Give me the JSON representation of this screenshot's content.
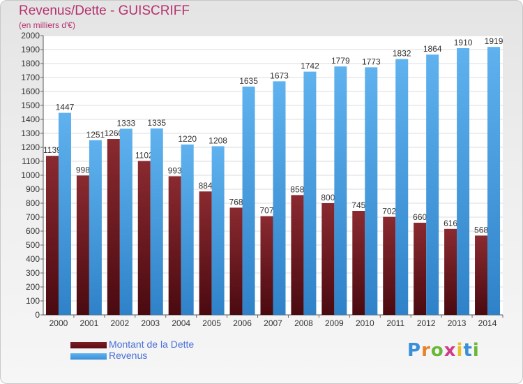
{
  "chart_data": {
    "type": "bar",
    "title": "Revenus/Dette - GUISCRIFF",
    "subtitle": "(en milliers d'€)",
    "categories": [
      "2000",
      "2001",
      "2002",
      "2003",
      "2004",
      "2005",
      "2006",
      "2007",
      "2008",
      "2009",
      "2010",
      "2011",
      "2012",
      "2013",
      "2014"
    ],
    "series": [
      {
        "name": "Montant de la Dette",
        "color": "#7a1c22",
        "values": [
          1139,
          998,
          1260,
          1102,
          993,
          884,
          768,
          707,
          858,
          800,
          745,
          702,
          660,
          616,
          568
        ]
      },
      {
        "name": "Revenus",
        "color": "#4ea3e3",
        "values": [
          1447,
          1251,
          1333,
          1335,
          1220,
          1208,
          1635,
          1673,
          1742,
          1779,
          1773,
          1832,
          1864,
          1910,
          1919
        ]
      }
    ],
    "ylim": [
      0,
      2000
    ],
    "ytick_step": 100,
    "grid": true,
    "legend_position": "bottom-left"
  },
  "logo": {
    "text": "Proxiti",
    "letters": [
      "P",
      "r",
      "o",
      "x",
      "i",
      "t",
      "i"
    ],
    "colors": [
      "#3a8fd8",
      "#e8822a",
      "#6ab83a",
      "#d23a8a",
      "#e8c02a",
      "#3a8fd8",
      "#6ab83a"
    ]
  }
}
